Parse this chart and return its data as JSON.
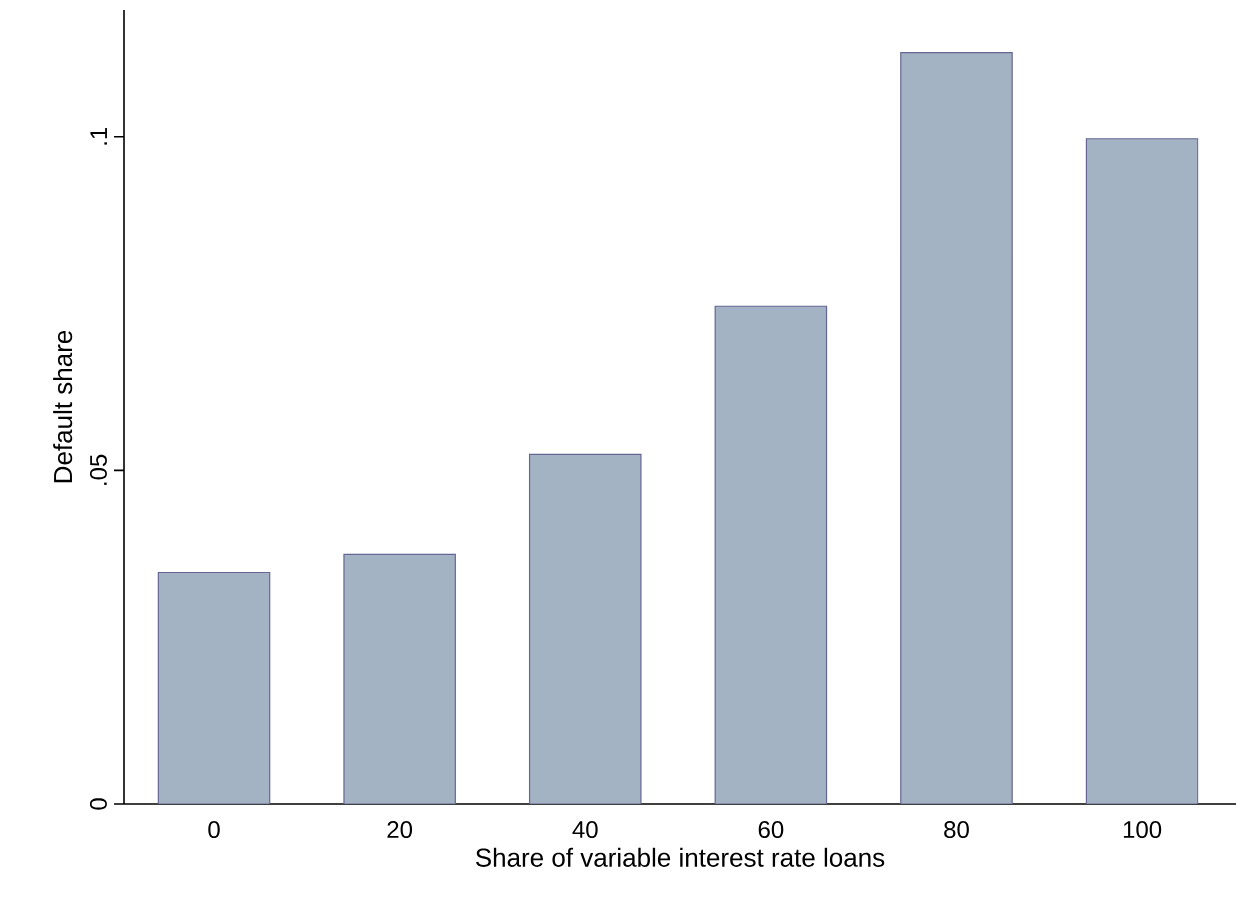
{
  "chart_data": {
    "type": "bar",
    "xlabel": "Share of variable interest rate loans",
    "ylabel": "Default share",
    "categories": [
      "0",
      "20",
      "40",
      "60",
      "80",
      "100"
    ],
    "values": [
      0.0347,
      0.0374,
      0.0524,
      0.0746,
      0.1126,
      0.0997
    ],
    "color": "#a3b3c3",
    "ylim": [
      0,
      0.119
    ],
    "yticks": [
      0,
      {
        "value": 0.05,
        "label": ".05"
      },
      {
        "value": 0.1,
        "label": ".1"
      }
    ],
    "grid": false
  }
}
